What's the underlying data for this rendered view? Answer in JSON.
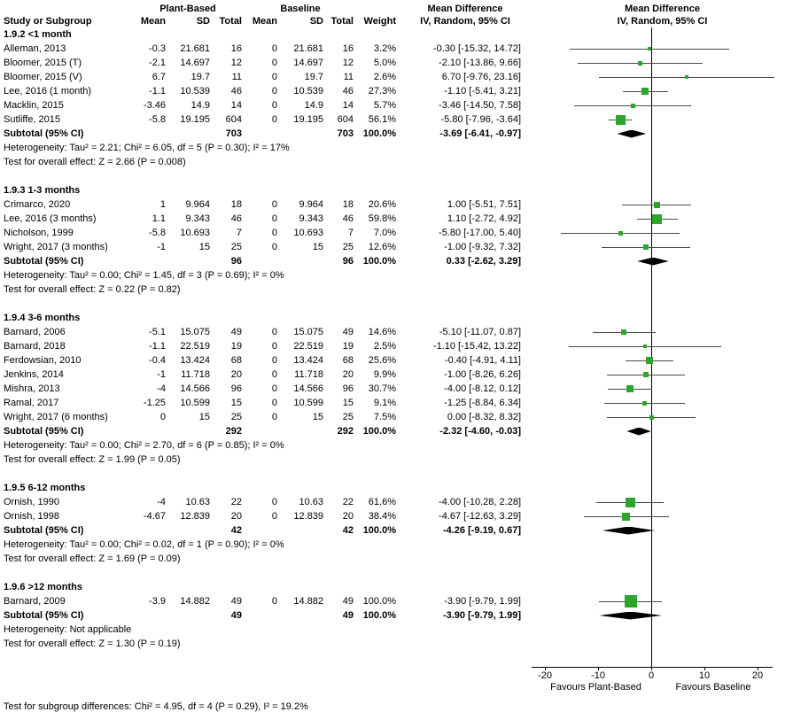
{
  "header": {
    "group1": "Plant-Based",
    "group2": "Baseline",
    "mean_diff": "Mean Difference",
    "col_study": "Study or Subgroup",
    "col_mean": "Mean",
    "col_sd": "SD",
    "col_total": "Total",
    "col_weight": "Weight",
    "col_ci": "IV, Random, 95% CI"
  },
  "axis": {
    "ticks": [
      -20,
      -10,
      0,
      10,
      20
    ],
    "tick_labels": [
      "-20",
      "-10",
      "0",
      "10",
      "20"
    ],
    "favours_left": "Favours Plant-Based",
    "favours_right": "Favours Baseline"
  },
  "footer": {
    "subgroup_test": "Test for subgroup differences: Chi² = 4.95, df = 4 (P = 0.29), I² = 19.2%"
  },
  "colors": {
    "marker": "#2DA52D",
    "diamond": "#000000",
    "ci_line": "#4a4a4a"
  },
  "chart_data": {
    "type": "forest",
    "effect_measure": "Mean Difference",
    "model": "IV, Random, 95% CI",
    "x_range": [
      -22.5,
      26.5
    ],
    "subgroups": [
      {
        "label": "1.9.2 <1 month",
        "studies": [
          {
            "study": "Alleman, 2013",
            "mean1": "-0.3",
            "sd1": "21.681",
            "n1": "16",
            "mean2": "0",
            "sd2": "21.681",
            "n2": "16",
            "weight": "3.2%",
            "w": 3.2,
            "ci_text": "-0.30 [-15.32, 14.72]",
            "est": -0.3,
            "lo": -15.32,
            "hi": 14.72
          },
          {
            "study": "Bloomer, 2015 (T)",
            "mean1": "-2.1",
            "sd1": "14.697",
            "n1": "12",
            "mean2": "0",
            "sd2": "14.697",
            "n2": "12",
            "weight": "5.0%",
            "w": 5.0,
            "ci_text": "-2.10 [-13.86, 9.66]",
            "est": -2.1,
            "lo": -13.86,
            "hi": 9.66
          },
          {
            "study": "Bloomer, 2015 (V)",
            "mean1": "6.7",
            "sd1": "19.7",
            "n1": "11",
            "mean2": "0",
            "sd2": "19.7",
            "n2": "11",
            "weight": "2.6%",
            "w": 2.6,
            "ci_text": "6.70 [-9.76, 23.16]",
            "est": 6.7,
            "lo": -9.76,
            "hi": 23.16
          },
          {
            "study": "Lee, 2016 (1 month)",
            "mean1": "-1.1",
            "sd1": "10.539",
            "n1": "46",
            "mean2": "0",
            "sd2": "10.539",
            "n2": "46",
            "weight": "27.3%",
            "w": 27.3,
            "ci_text": "-1.10 [-5.41, 3.21]",
            "est": -1.1,
            "lo": -5.41,
            "hi": 3.21
          },
          {
            "study": "Macklin, 2015",
            "mean1": "-3.46",
            "sd1": "14.9",
            "n1": "14",
            "mean2": "0",
            "sd2": "14.9",
            "n2": "14",
            "weight": "5.7%",
            "w": 5.7,
            "ci_text": "-3.46 [-14.50, 7.58]",
            "est": -3.46,
            "lo": -14.5,
            "hi": 7.58
          },
          {
            "study": "Sutliffe, 2015",
            "mean1": "-5.8",
            "sd1": "19.195",
            "n1": "604",
            "mean2": "0",
            "sd2": "19.195",
            "n2": "604",
            "weight": "56.1%",
            "w": 56.1,
            "ci_text": "-5.80 [-7.96, -3.64]",
            "est": -5.8,
            "lo": -7.96,
            "hi": -3.64
          }
        ],
        "subtotal": {
          "label": "Subtotal (95% CI)",
          "n1": "703",
          "n2": "703",
          "weight": "100.0%",
          "ci_text": "-3.69 [-6.41, -0.97]",
          "est": -3.69,
          "lo": -6.41,
          "hi": -0.97
        },
        "heterogeneity": "Heterogeneity: Tau² = 2.21; Chi² = 6.05, df = 5 (P = 0.30); I² = 17%",
        "overall": "Test for overall effect: Z = 2.66 (P = 0.008)"
      },
      {
        "label": "1.9.3 1-3 months",
        "studies": [
          {
            "study": "Crimarco, 2020",
            "mean1": "1",
            "sd1": "9.964",
            "n1": "18",
            "mean2": "0",
            "sd2": "9.964",
            "n2": "18",
            "weight": "20.6%",
            "w": 20.6,
            "ci_text": "1.00 [-5.51, 7.51]",
            "est": 1.0,
            "lo": -5.51,
            "hi": 7.51
          },
          {
            "study": "Lee, 2016 (3 months)",
            "mean1": "1.1",
            "sd1": "9.343",
            "n1": "46",
            "mean2": "0",
            "sd2": "9.343",
            "n2": "46",
            "weight": "59.8%",
            "w": 59.8,
            "ci_text": "1.10 [-2.72, 4.92]",
            "est": 1.1,
            "lo": -2.72,
            "hi": 4.92
          },
          {
            "study": "Nicholson, 1999",
            "mean1": "-5.8",
            "sd1": "10.693",
            "n1": "7",
            "mean2": "0",
            "sd2": "10.693",
            "n2": "7",
            "weight": "7.0%",
            "w": 7.0,
            "ci_text": "-5.80 [-17.00, 5.40]",
            "est": -5.8,
            "lo": -17.0,
            "hi": 5.4
          },
          {
            "study": "Wright, 2017 (3 months)",
            "mean1": "-1",
            "sd1": "15",
            "n1": "25",
            "mean2": "0",
            "sd2": "15",
            "n2": "25",
            "weight": "12.6%",
            "w": 12.6,
            "ci_text": "-1.00 [-9.32, 7.32]",
            "est": -1.0,
            "lo": -9.32,
            "hi": 7.32
          }
        ],
        "subtotal": {
          "label": "Subtotal (95% CI)",
          "n1": "96",
          "n2": "96",
          "weight": "100.0%",
          "ci_text": "0.33 [-2.62, 3.29]",
          "est": 0.33,
          "lo": -2.62,
          "hi": 3.29
        },
        "heterogeneity": "Heterogeneity: Tau² = 0.00; Chi² = 1.45, df = 3 (P = 0.69); I² = 0%",
        "overall": "Test for overall effect: Z = 0.22 (P = 0.82)"
      },
      {
        "label": "1.9.4 3-6 months",
        "studies": [
          {
            "study": "Barnard, 2006",
            "mean1": "-5.1",
            "sd1": "15.075",
            "n1": "49",
            "mean2": "0",
            "sd2": "15.075",
            "n2": "49",
            "weight": "14.6%",
            "w": 14.6,
            "ci_text": "-5.10 [-11.07, 0.87]",
            "est": -5.1,
            "lo": -11.07,
            "hi": 0.87
          },
          {
            "study": "Barnard, 2018",
            "mean1": "-1.1",
            "sd1": "22.519",
            "n1": "19",
            "mean2": "0",
            "sd2": "22.519",
            "n2": "19",
            "weight": "2.5%",
            "w": 2.5,
            "ci_text": "-1.10 [-15.42, 13.22]",
            "est": -1.1,
            "lo": -15.42,
            "hi": 13.22
          },
          {
            "study": "Ferdowsian, 2010",
            "mean1": "-0.4",
            "sd1": "13.424",
            "n1": "68",
            "mean2": "0",
            "sd2": "13.424",
            "n2": "68",
            "weight": "25.6%",
            "w": 25.6,
            "ci_text": "-0.40 [-4.91, 4.11]",
            "est": -0.4,
            "lo": -4.91,
            "hi": 4.11
          },
          {
            "study": "Jenkins, 2014",
            "mean1": "-1",
            "sd1": "11.718",
            "n1": "20",
            "mean2": "0",
            "sd2": "11.718",
            "n2": "20",
            "weight": "9.9%",
            "w": 9.9,
            "ci_text": "-1.00 [-8.26, 6.26]",
            "est": -1.0,
            "lo": -8.26,
            "hi": 6.26
          },
          {
            "study": "Mishra, 2013",
            "mean1": "-4",
            "sd1": "14.566",
            "n1": "96",
            "mean2": "0",
            "sd2": "14.566",
            "n2": "96",
            "weight": "30.7%",
            "w": 30.7,
            "ci_text": "-4.00 [-8.12, 0.12]",
            "est": -4.0,
            "lo": -8.12,
            "hi": 0.12
          },
          {
            "study": "Ramal, 2017",
            "mean1": "-1.25",
            "sd1": "10.599",
            "n1": "15",
            "mean2": "0",
            "sd2": "10.599",
            "n2": "15",
            "weight": "9.1%",
            "w": 9.1,
            "ci_text": "-1.25 [-8.84, 6.34]",
            "est": -1.25,
            "lo": -8.84,
            "hi": 6.34
          },
          {
            "study": "Wright, 2017 (6 months)",
            "mean1": "0",
            "sd1": "15",
            "n1": "25",
            "mean2": "0",
            "sd2": "15",
            "n2": "25",
            "weight": "7.5%",
            "w": 7.5,
            "ci_text": "0.00 [-8.32, 8.32]",
            "est": 0.0,
            "lo": -8.32,
            "hi": 8.32
          }
        ],
        "subtotal": {
          "label": "Subtotal (95% CI)",
          "n1": "292",
          "n2": "292",
          "weight": "100.0%",
          "ci_text": "-2.32 [-4.60, -0.03]",
          "est": -2.32,
          "lo": -4.6,
          "hi": -0.03
        },
        "heterogeneity": "Heterogeneity: Tau² = 0.00; Chi² = 2.70, df = 6 (P = 0.85); I² = 0%",
        "overall": "Test for overall effect: Z = 1.99 (P = 0.05)"
      },
      {
        "label": "1.9.5 6-12 months",
        "studies": [
          {
            "study": "Ornish, 1990",
            "mean1": "-4",
            "sd1": "10.63",
            "n1": "22",
            "mean2": "0",
            "sd2": "10.63",
            "n2": "22",
            "weight": "61.6%",
            "w": 61.6,
            "ci_text": "-4.00 [-10.28, 2.28]",
            "est": -4.0,
            "lo": -10.28,
            "hi": 2.28
          },
          {
            "study": "Ornish, 1998",
            "mean1": "-4.67",
            "sd1": "12.839",
            "n1": "20",
            "mean2": "0",
            "sd2": "12.839",
            "n2": "20",
            "weight": "38.4%",
            "w": 38.4,
            "ci_text": "-4.67 [-12.63, 3.29]",
            "est": -4.67,
            "lo": -12.63,
            "hi": 3.29
          }
        ],
        "subtotal": {
          "label": "Subtotal (95% CI)",
          "n1": "42",
          "n2": "42",
          "weight": "100.0%",
          "ci_text": "-4.26 [-9.19, 0.67]",
          "est": -4.26,
          "lo": -9.19,
          "hi": 0.67
        },
        "heterogeneity": "Heterogeneity: Tau² = 0.00; Chi² = 0.02, df = 1 (P = 0.90); I² = 0%",
        "overall": "Test for overall effect: Z = 1.69 (P = 0.09)"
      },
      {
        "label": "1.9.6 >12 months",
        "studies": [
          {
            "study": "Barnard, 2009",
            "mean1": "-3.9",
            "sd1": "14.882",
            "n1": "49",
            "mean2": "0",
            "sd2": "14.882",
            "n2": "49",
            "weight": "100.0%",
            "w": 100.0,
            "ci_text": "-3.90 [-9.79, 1.99]",
            "est": -3.9,
            "lo": -9.79,
            "hi": 1.99
          }
        ],
        "subtotal": {
          "label": "Subtotal (95% CI)",
          "n1": "49",
          "n2": "49",
          "weight": "100.0%",
          "ci_text": "-3.90 [-9.79, 1.99]",
          "est": -3.9,
          "lo": -9.79,
          "hi": 1.99
        },
        "heterogeneity": "Heterogeneity: Not applicable",
        "overall": "Test for overall effect: Z = 1.30 (P = 0.19)"
      }
    ]
  }
}
